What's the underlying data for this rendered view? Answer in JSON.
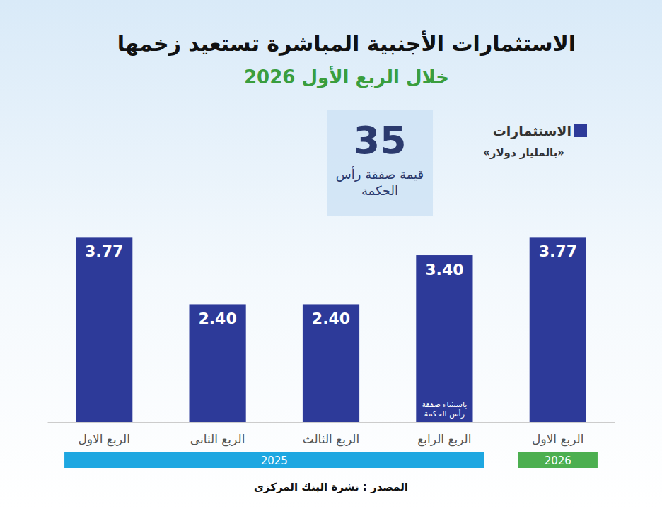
{
  "chart_data": {
    "type": "bar",
    "title": "الاستثمارات الأجنبية المباشرة تستعيد زخمها",
    "subtitle": "خلال الربع الأول 2026",
    "categories": [
      "الربع الاول",
      "الربع الثانى",
      "الربع الثالث",
      "الربع الرابع",
      "الربع الاول"
    ],
    "series": [
      {
        "name": "الاستثمارات",
        "color": "#2d3a99",
        "values": [
          3.77,
          2.4,
          2.4,
          3.4,
          3.77
        ],
        "value_labels": [
          "3.77",
          "2.40",
          "2.40",
          "3.40",
          "3.77"
        ],
        "value_notes": [
          null,
          null,
          null,
          "باستثناء صفقة رأس الحكمة",
          null
        ]
      }
    ],
    "unit": "«بالمليار دولار»",
    "groups": [
      {
        "name": "2025",
        "span": 4,
        "color": "#1ea7e1"
      },
      {
        "name": "2026",
        "span": 1,
        "color": "#4caf50"
      }
    ],
    "annotations": [
      {
        "value": 35,
        "text": "قيمة صفقة رأس الحكمة"
      }
    ],
    "source": "المصدر : نشرة البنك المركزى",
    "ylim": [
      0,
      5
    ],
    "data_labels": true,
    "tick_labels": "x",
    "legend": "top-right",
    "grid": false
  }
}
